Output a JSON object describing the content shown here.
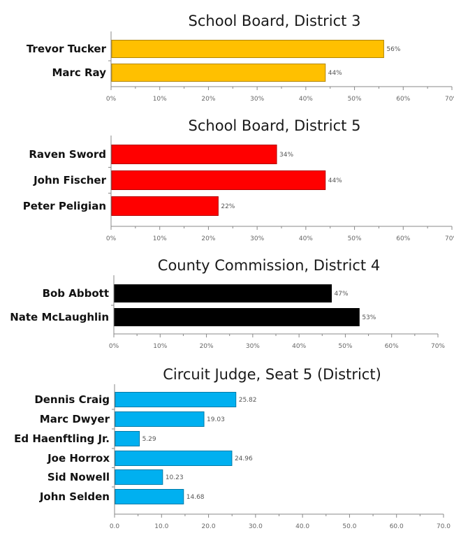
{
  "chart_data": [
    {
      "type": "bar",
      "orientation": "horizontal",
      "title": "School Board, District 3",
      "categories": [
        "Trevor Tucker",
        "Marc Ray"
      ],
      "values": [
        56,
        44
      ],
      "value_labels": [
        "56%",
        "44%"
      ],
      "xlim": [
        0,
        70
      ],
      "ticks": [
        "0%",
        "10%",
        "20%",
        "30%",
        "40%",
        "50%",
        "60%",
        "70%"
      ],
      "color": "#FFC000",
      "grid": false,
      "legend": "none"
    },
    {
      "type": "bar",
      "orientation": "horizontal",
      "title": "School Board, District 5",
      "categories": [
        "Raven Sword",
        "John Fischer",
        "Peter Peligian"
      ],
      "values": [
        34,
        44,
        22
      ],
      "value_labels": [
        "34%",
        "44%",
        "22%"
      ],
      "xlim": [
        0,
        70
      ],
      "ticks": [
        "0%",
        "10%",
        "20%",
        "30%",
        "40%",
        "50%",
        "60%",
        "70%"
      ],
      "color": "#FF0000",
      "grid": false,
      "legend": "none"
    },
    {
      "type": "bar",
      "orientation": "horizontal",
      "title": "County Commission, District 4",
      "categories": [
        "Bob Abbott",
        "Nate McLaughlin"
      ],
      "values": [
        47,
        53
      ],
      "value_labels": [
        "47%",
        "53%"
      ],
      "xlim": [
        0,
        70
      ],
      "ticks": [
        "0%",
        "10%",
        "20%",
        "30%",
        "40%",
        "50%",
        "60%",
        "70%"
      ],
      "color": "#000000",
      "grid": false,
      "legend": "none"
    },
    {
      "type": "bar",
      "orientation": "horizontal",
      "title": "Circuit Judge, Seat 5 (District)",
      "categories": [
        "Dennis Craig",
        "Marc Dwyer",
        "Ed Haenftling Jr.",
        "Joe Horrox",
        "Sid Nowell",
        "John Selden"
      ],
      "values": [
        25.82,
        19.03,
        5.29,
        24.96,
        10.23,
        14.68
      ],
      "value_labels": [
        "25.82",
        "19.03",
        "5.29",
        "24.96",
        "10.23",
        "14.68"
      ],
      "xlim": [
        0,
        70
      ],
      "ticks": [
        "0.0",
        "10.0",
        "20.0",
        "30.0",
        "40.0",
        "50.0",
        "60.0",
        "70.0"
      ],
      "color": "#00B0F0",
      "grid": false,
      "legend": "none"
    }
  ]
}
